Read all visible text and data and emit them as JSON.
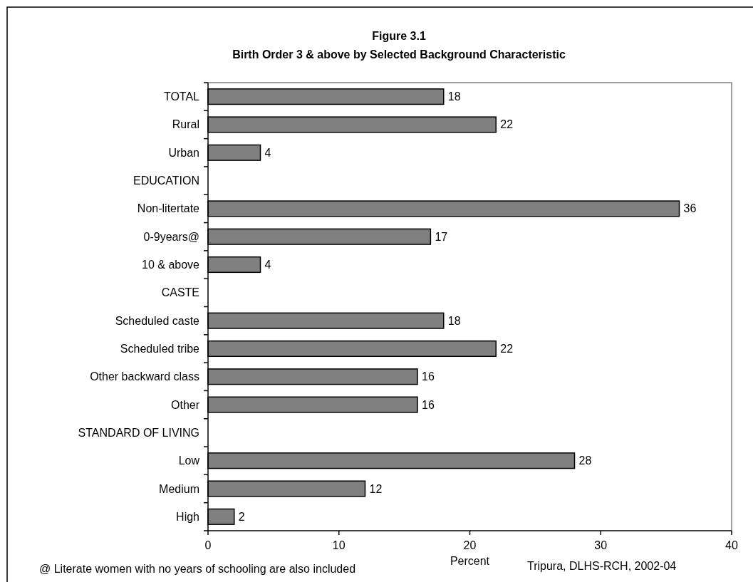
{
  "chart_data": {
    "type": "bar",
    "orientation": "horizontal",
    "title": "Figure 3.1",
    "subtitle": "Birth Order 3 & above by Selected Background Characteristic",
    "categories": [
      "TOTAL",
      "Rural",
      "Urban",
      "EDUCATION",
      "Non-litertate",
      "0-9years@",
      "10 & above",
      "CASTE",
      "Scheduled caste",
      "Scheduled tribe",
      "Other backward class",
      "Other",
      "STANDARD OF LIVING",
      "Low",
      "Medium",
      "High"
    ],
    "values": [
      18,
      22,
      4,
      null,
      36,
      17,
      4,
      null,
      18,
      22,
      16,
      16,
      null,
      28,
      12,
      2
    ],
    "color": "#808080",
    "data_labels": true,
    "xlim": [
      0,
      40
    ],
    "xticks": [
      0,
      10,
      20,
      30,
      40
    ],
    "xlabel": "Percent",
    "grid": false,
    "annotations": [
      "@ Literate women with no years of schooling are also included",
      "Tripura, DLHS-RCH, 2002-04"
    ]
  }
}
